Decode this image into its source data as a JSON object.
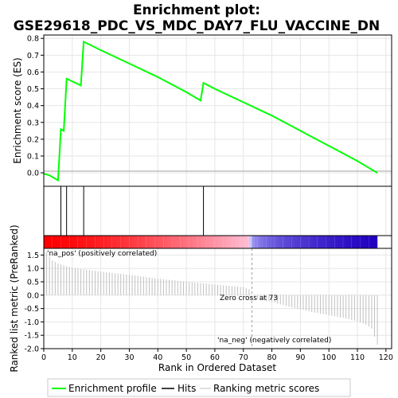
{
  "chart_data": {
    "type": "line",
    "title_line1": "Enrichment plot:",
    "title_line2": "GSE29618_PDC_VS_MDC_DAY7_FLU_VACCINE_DN",
    "xlabel": "Rank in Ordered Dataset",
    "es_ylabel": "Enrichment score (ES)",
    "rank_ylabel": "Ranked list metric (PreRanked)",
    "xlim": [
      0,
      122
    ],
    "x_ticks": [
      0,
      10,
      20,
      30,
      40,
      50,
      60,
      70,
      80,
      90,
      100,
      110,
      120
    ],
    "es_ylim": [
      -0.08,
      0.82
    ],
    "es_ticks": [
      0.0,
      0.1,
      0.2,
      0.3,
      0.4,
      0.5,
      0.6,
      0.7,
      0.8
    ],
    "es_tick_labels": [
      "0.0",
      "0.1",
      "0.2",
      "0.3",
      "0.4",
      "0.5",
      "0.6",
      "0.7",
      "0.8"
    ],
    "es_x": [
      0,
      2,
      5,
      6,
      7,
      8,
      13,
      14,
      20,
      30,
      40,
      50,
      55,
      56,
      60,
      70,
      80,
      90,
      100,
      110,
      114,
      117
    ],
    "es_y": [
      -0.005,
      -0.015,
      -0.045,
      0.26,
      0.25,
      0.56,
      0.52,
      0.78,
      0.73,
      0.65,
      0.57,
      0.48,
      0.43,
      0.535,
      0.5,
      0.42,
      0.34,
      0.25,
      0.16,
      0.07,
      0.03,
      0.0
    ],
    "hits": [
      6,
      8,
      14,
      56
    ],
    "metric_ylim": [
      -2.0,
      1.75
    ],
    "metric_ticks": [
      -2.0,
      -1.5,
      -1.0,
      -0.5,
      0.0,
      0.5,
      1.0,
      1.5
    ],
    "metric_tick_labels": [
      "-2.0",
      "-1.5",
      "-1.0",
      "-0.5",
      "0.0",
      "0.5",
      "1.0",
      "1.5"
    ],
    "metric_knots_x": [
      1,
      3,
      5,
      10,
      20,
      30,
      40,
      50,
      60,
      70,
      72,
      73,
      75,
      85,
      95,
      105,
      110,
      113,
      115,
      116,
      117
    ],
    "metric_knots_y": [
      1.6,
      1.3,
      1.18,
      1.02,
      0.88,
      0.76,
      0.62,
      0.5,
      0.4,
      0.3,
      0.22,
      0.0,
      -0.12,
      -0.4,
      -0.65,
      -0.85,
      -0.98,
      -1.1,
      -1.25,
      -1.55,
      -1.85
    ],
    "total_genes": 117,
    "zero_cross_rank": 73,
    "zero_cross_label": "Zero cross at 73",
    "pos_label": "'na_pos' (positively correlated)",
    "neg_label": "'na_neg' (negatively correlated)",
    "legend": {
      "enrichment": "Enrichment profile",
      "hits": "Hits",
      "ranking": "Ranking metric scores"
    },
    "colors": {
      "es_line": "#00ff00",
      "hits": "#000000",
      "metric_bars": "#c0c0c0",
      "pos_dark": "#ff0000",
      "pos_light": "#ffc0d8",
      "neg_light": "#c8c8ff",
      "neg_dark": "#2000c0",
      "grid": "#e6e6e6",
      "zero_line": "#a0a0a0",
      "pos_text": "#cc0000",
      "neg_text": "#0000cc"
    }
  }
}
